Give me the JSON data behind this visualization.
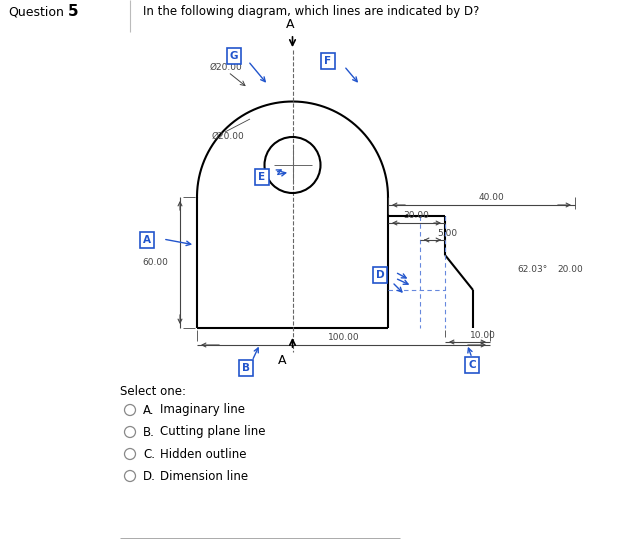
{
  "question_label": "Question",
  "question_num": "5",
  "question_text": "In the following diagram, which lines are indicated by D?",
  "bg_color": "#ffffff",
  "diagram_color": "#000000",
  "blue_color": "#2255cc",
  "dim_color": "#444444",
  "hidden_line_color": "#6688dd",
  "select_text": "Select one:",
  "options": [
    {
      "letter": "A",
      "text": "Imaginary line"
    },
    {
      "letter": "B",
      "text": "Cutting plane line"
    },
    {
      "letter": "C",
      "text": "Hidden outline"
    },
    {
      "letter": "D",
      "text": "Dimension line"
    }
  ]
}
